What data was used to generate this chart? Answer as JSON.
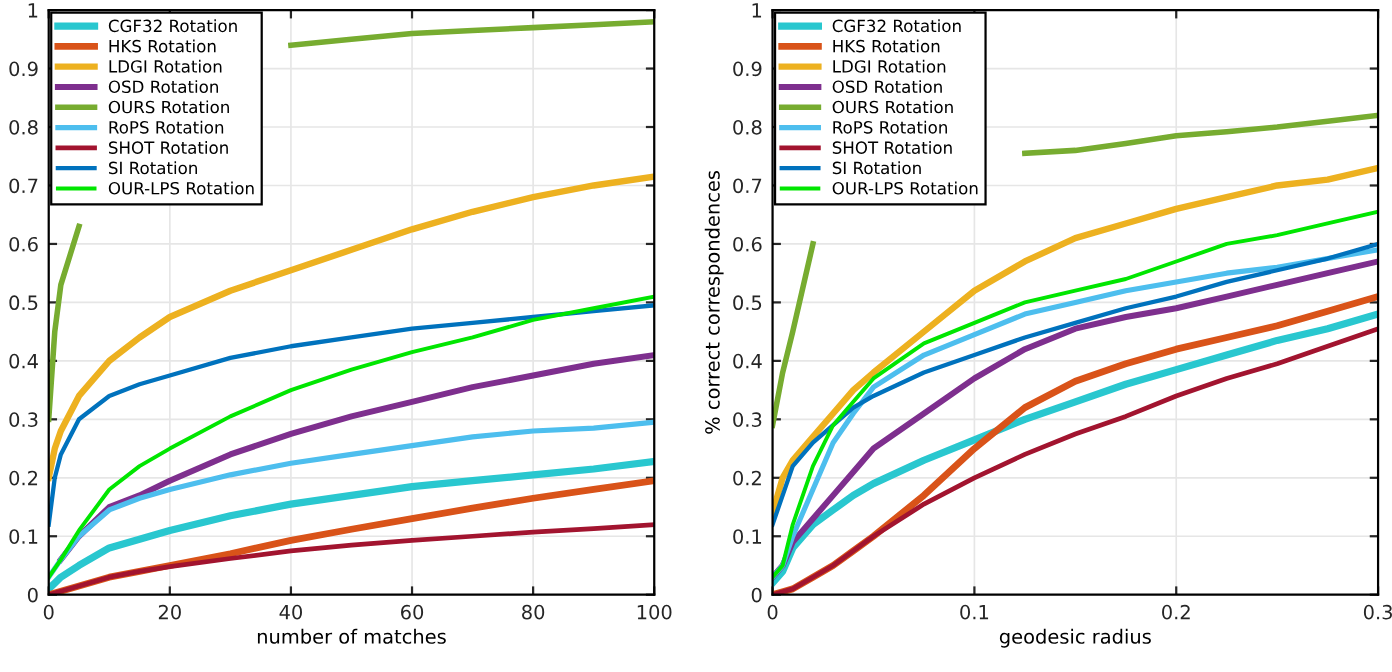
{
  "chart_data": [
    {
      "type": "line",
      "xlabel": "number of matches",
      "xlim": [
        0,
        100
      ],
      "ylim": [
        0,
        1
      ],
      "xticks": [
        0,
        20,
        40,
        60,
        80,
        100
      ],
      "yticks": [
        0,
        0.1,
        0.2,
        0.3,
        0.4,
        0.5,
        0.6,
        0.7,
        0.8,
        0.9,
        1
      ],
      "grid": true,
      "legend": "top left",
      "x": [
        0,
        1,
        2,
        5,
        10,
        15,
        20,
        30,
        40,
        50,
        60,
        70,
        80,
        90,
        100
      ],
      "series": [
        {
          "name": "CGF32 Rotation",
          "color": "#29c7cf",
          "values": [
            0.01,
            0.02,
            0.03,
            0.05,
            0.08,
            0.095,
            0.11,
            0.135,
            0.155,
            0.17,
            0.185,
            0.195,
            0.205,
            0.215,
            0.228
          ]
        },
        {
          "name": "HKS Rotation",
          "color": "#d95319",
          "values": [
            0,
            0.003,
            0.006,
            0.015,
            0.03,
            0.04,
            0.05,
            0.07,
            0.093,
            0.112,
            0.13,
            0.148,
            0.165,
            0.18,
            0.195
          ]
        },
        {
          "name": "LDGI Rotation",
          "color": "#edb120",
          "values": [
            0.2,
            0.25,
            0.28,
            0.34,
            0.4,
            0.44,
            0.475,
            0.52,
            0.555,
            0.59,
            0.625,
            0.655,
            0.68,
            0.7,
            0.715
          ]
        },
        {
          "name": "OSD Rotation",
          "color": "#7e2f8e",
          "values": [
            null,
            null,
            0.06,
            0.1,
            0.15,
            0.17,
            0.195,
            0.24,
            0.275,
            0.305,
            0.33,
            0.355,
            0.375,
            0.395,
            0.41
          ]
        },
        {
          "name": "OURS Rotation",
          "color": "#77ac30",
          "values": [
            0.3,
            0.45,
            0.53,
            0.63,
            null,
            null,
            null,
            null,
            0.94,
            0.95,
            0.96,
            0.965,
            0.97,
            0.975,
            0.98
          ]
        },
        {
          "name": "RoPS Rotation",
          "color": "#4dbeee",
          "values": [
            0.03,
            0.045,
            0.06,
            0.1,
            0.145,
            0.165,
            0.18,
            0.205,
            0.225,
            0.24,
            0.255,
            0.27,
            0.28,
            0.285,
            0.295
          ]
        },
        {
          "name": "SHOT Rotation",
          "color": "#a2142f",
          "values": [
            0,
            0.003,
            0.006,
            0.015,
            0.03,
            0.04,
            0.048,
            0.062,
            0.075,
            0.085,
            0.093,
            0.1,
            0.107,
            0.113,
            0.12
          ]
        },
        {
          "name": "SI Rotation",
          "color": "#0072bd",
          "values": [
            0.12,
            0.2,
            0.24,
            0.3,
            0.34,
            0.36,
            0.375,
            0.405,
            0.425,
            0.44,
            0.455,
            0.465,
            0.475,
            0.485,
            0.495
          ]
        },
        {
          "name": "OUR-LPS Rotation",
          "color": "#00e600",
          "values": [
            0.03,
            0.045,
            0.06,
            0.11,
            0.18,
            0.22,
            0.25,
            0.305,
            0.35,
            0.385,
            0.415,
            0.44,
            0.47,
            0.49,
            0.51
          ]
        }
      ]
    },
    {
      "type": "line",
      "xlabel": "geodesic radius",
      "ylabel": "% correct correspondences",
      "xlim": [
        0,
        0.3
      ],
      "ylim": [
        0,
        1
      ],
      "xticks": [
        0,
        0.1,
        0.2,
        0.3
      ],
      "yticks": [
        0,
        0.1,
        0.2,
        0.3,
        0.4,
        0.5,
        0.6,
        0.7,
        0.8,
        0.9,
        1
      ],
      "grid": true,
      "legend": "top left",
      "x": [
        0,
        0.005,
        0.01,
        0.02,
        0.03,
        0.04,
        0.05,
        0.075,
        0.1,
        0.125,
        0.15,
        0.175,
        0.2,
        0.225,
        0.25,
        0.275,
        0.3
      ],
      "series": [
        {
          "name": "CGF32 Rotation",
          "color": "#29c7cf",
          "values": [
            0.02,
            0.04,
            0.08,
            0.12,
            0.145,
            0.17,
            0.19,
            0.23,
            0.265,
            0.3,
            0.33,
            0.36,
            0.385,
            0.41,
            0.435,
            0.455,
            0.48
          ]
        },
        {
          "name": "HKS Rotation",
          "color": "#d95319",
          "values": [
            0,
            0.005,
            0.01,
            0.03,
            0.05,
            0.075,
            0.1,
            0.17,
            0.25,
            0.32,
            0.365,
            0.395,
            0.42,
            0.44,
            0.46,
            0.485,
            0.51
          ]
        },
        {
          "name": "LDGI Rotation",
          "color": "#edb120",
          "values": [
            0.14,
            0.2,
            0.23,
            0.27,
            0.31,
            0.35,
            0.38,
            0.45,
            0.52,
            0.57,
            0.61,
            0.635,
            0.66,
            0.68,
            0.7,
            0.71,
            0.73
          ]
        },
        {
          "name": "OSD Rotation",
          "color": "#7e2f8e",
          "values": [
            0.03,
            0.05,
            0.09,
            0.13,
            0.17,
            0.21,
            0.25,
            0.31,
            0.37,
            0.42,
            0.455,
            0.475,
            0.49,
            0.51,
            0.53,
            0.55,
            0.57
          ]
        },
        {
          "name": "OURS Rotation",
          "color": "#77ac30",
          "values": [
            0.29,
            0.38,
            0.45,
            0.6,
            null,
            null,
            null,
            null,
            null,
            0.755,
            0.76,
            0.772,
            0.785,
            0.792,
            0.8,
            0.81,
            0.82
          ]
        },
        {
          "name": "RoPS Rotation",
          "color": "#4dbeee",
          "values": [
            0.03,
            0.05,
            0.1,
            0.18,
            0.26,
            0.31,
            0.355,
            0.41,
            0.445,
            0.48,
            0.5,
            0.52,
            0.535,
            0.55,
            0.56,
            0.575,
            0.59
          ]
        },
        {
          "name": "SHOT Rotation",
          "color": "#a2142f",
          "values": [
            0,
            0.005,
            0.01,
            0.03,
            0.05,
            0.075,
            0.1,
            0.155,
            0.2,
            0.24,
            0.275,
            0.305,
            0.34,
            0.37,
            0.395,
            0.425,
            0.455
          ]
        },
        {
          "name": "SI Rotation",
          "color": "#0072bd",
          "values": [
            0.12,
            0.17,
            0.22,
            0.26,
            0.29,
            0.32,
            0.34,
            0.38,
            0.41,
            0.44,
            0.465,
            0.49,
            0.51,
            0.535,
            0.555,
            0.575,
            0.6
          ]
        },
        {
          "name": "OUR-LPS Rotation",
          "color": "#00e600",
          "values": [
            0.03,
            0.05,
            0.12,
            0.22,
            0.29,
            0.33,
            0.37,
            0.43,
            0.465,
            0.5,
            0.52,
            0.54,
            0.57,
            0.6,
            0.615,
            0.635,
            0.655
          ]
        }
      ]
    }
  ]
}
